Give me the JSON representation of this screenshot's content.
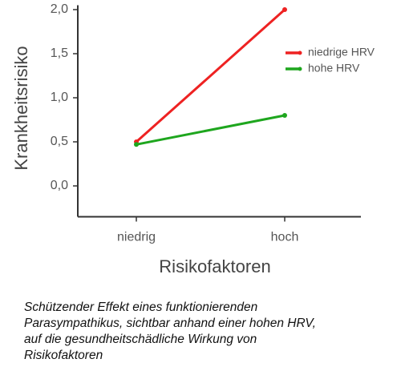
{
  "chart_data": {
    "type": "line",
    "y_label": "Krankheitsrisiko",
    "x_label": "Risikofaktoren",
    "categories": [
      "niedrig",
      "hoch"
    ],
    "series": [
      {
        "name": "niedrige HRV",
        "color": "#ee2222",
        "values": [
          0.5,
          2.0
        ]
      },
      {
        "name": "hohe HRV",
        "color": "#1ea61e",
        "values": [
          0.47,
          0.8
        ]
      }
    ],
    "ylim": [
      -0.35,
      2.05
    ],
    "yticks": [
      {
        "value": 0,
        "label": "0,0"
      },
      {
        "value": 0.5,
        "label": "0,5"
      },
      {
        "value": 1,
        "label": "1,0"
      },
      {
        "value": 1.5,
        "label": "1,5"
      },
      {
        "value": 2,
        "label": "2,0"
      }
    ],
    "legend": "upper right",
    "caption": [
      "Schützender Effekt eines funktionierenden",
      "Parasympathikus, sichtbar anhand einer hohen HRV,",
      "auf die gesundheitschädliche Wirkung von",
      "Risikofaktoren"
    ]
  }
}
